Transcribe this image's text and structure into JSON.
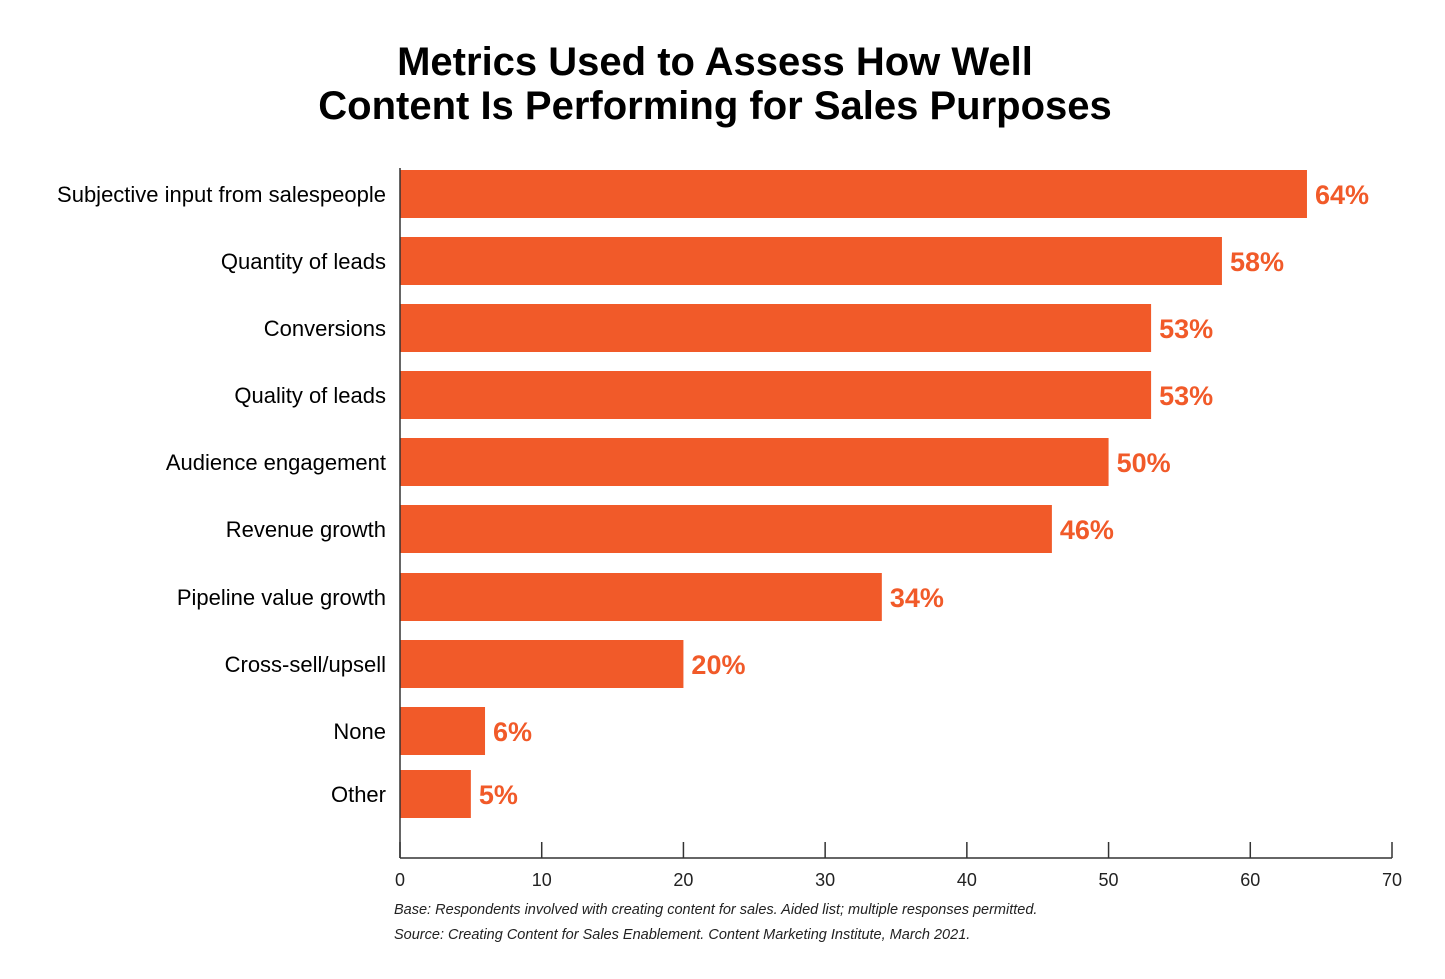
{
  "chart_data": {
    "type": "bar",
    "orientation": "horizontal",
    "title_lines": [
      "Metrics Used to Assess How Well",
      "Content Is Performing for Sales Purposes"
    ],
    "categories": [
      "Subjective input from salespeople",
      "Quantity of leads",
      "Conversions",
      "Quality of leads",
      "Audience engagement",
      "Revenue growth",
      "Pipeline value growth",
      "Cross-sell/upsell",
      "None",
      "Other"
    ],
    "values": [
      64,
      58,
      53,
      53,
      50,
      46,
      34,
      20,
      6,
      5
    ],
    "data_labels": [
      "64%",
      "58%",
      "53%",
      "53%",
      "50%",
      "46%",
      "34%",
      "20%",
      "6%",
      "5%"
    ],
    "xlim": [
      0,
      70
    ],
    "xticks": [
      "0",
      "10",
      "20",
      "30",
      "40",
      "50",
      "60",
      "70"
    ],
    "xlabel": "",
    "ylabel": "",
    "grid": false,
    "bar_color": "#F15A29",
    "label_color": "#F15A29"
  },
  "footnotes": {
    "base": "Base: Respondents involved with creating content for sales. Aided list; multiple responses permitted.",
    "source": "Source: Creating Content for Sales Enablement. Content Marketing Institute, March 2021."
  }
}
